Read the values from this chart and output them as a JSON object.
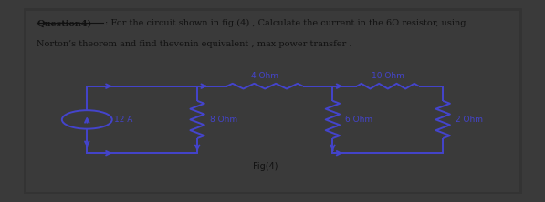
{
  "bg_outer": "#3a3a3a",
  "bg_inner": "#b8b8b8",
  "bg_panel": "#c8c8c8",
  "title_bold": "Question4)",
  "title_colon": ": For the circuit shown in fig.(4) , Calculate the current in the 6Ω resistor, using",
  "line2": "Norton’s theorem and find thevenin equivalent , max power transfer .",
  "fig_label": "Fig(4)",
  "R1_label": "4 Ohm",
  "R2_label": "10 Ohm",
  "R3_label": "8 Ohm",
  "R4_label": "6 Ohm",
  "R5_label": "2 Ohm",
  "source_label": "12 A",
  "wire_color": "#4444cc",
  "text_color": "#111111",
  "label_color": "#4444cc",
  "outer_border": "#222222",
  "inner_border": "#333333"
}
